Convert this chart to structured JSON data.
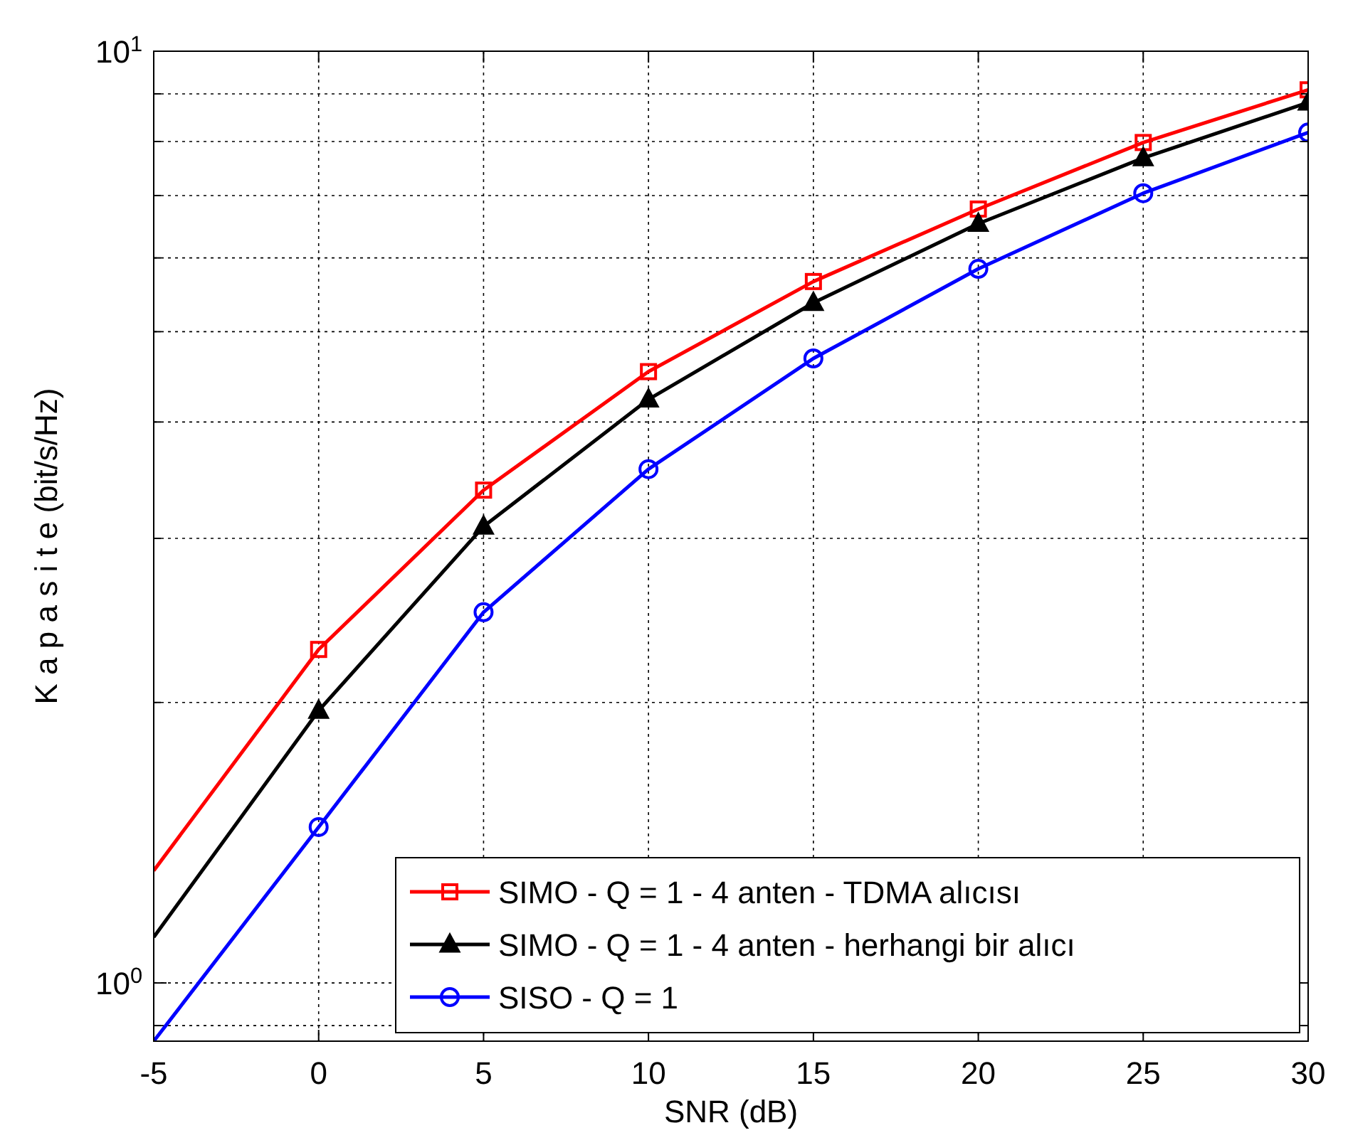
{
  "chart_data": {
    "type": "line",
    "xlabel": "SNR (dB)",
    "ylabel": "K a p a s i t e (bit/s/Hz)",
    "log": "y",
    "grid": true,
    "legend": "bottom right",
    "line_style": "solid",
    "x": [
      -5,
      0,
      5,
      10,
      15,
      20,
      25,
      30
    ],
    "xlim": [
      -5,
      30
    ],
    "xticks": [
      -5,
      0,
      5,
      10,
      15,
      20,
      25,
      30
    ],
    "ylim": [
      0.866,
      10
    ],
    "yticks": [
      {
        "value": 0.9,
        "label": null
      },
      {
        "value": 1,
        "label": "10$^{0}$"
      },
      {
        "value": 2,
        "label": null
      },
      {
        "value": 3,
        "label": null
      },
      {
        "value": 4,
        "label": null
      },
      {
        "value": 5,
        "label": null
      },
      {
        "value": 6,
        "label": null
      },
      {
        "value": 7,
        "label": null
      },
      {
        "value": 8,
        "label": null
      },
      {
        "value": 9,
        "label": null
      },
      {
        "value": 10,
        "label": "10$^{1}$"
      }
    ],
    "series": [
      {
        "name": "SIMO - Q = 1 - 4 anten - TDMA alıcısı",
        "color": "#ff0000",
        "marker": "square",
        "values": [
          1.32,
          2.28,
          3.38,
          4.53,
          5.66,
          6.77,
          7.98,
          9.09
        ]
      },
      {
        "name": "SIMO - Q = 1 - 4 anten - herhangi bir alıcı",
        "color": "#000000",
        "marker": "triangle",
        "values": [
          1.12,
          1.96,
          3.09,
          4.23,
          5.37,
          6.53,
          7.68,
          8.81
        ]
      },
      {
        "name": "SISO - Q = 1",
        "color": "#0000ff",
        "marker": "circle",
        "values": [
          0.866,
          1.47,
          2.5,
          3.56,
          4.68,
          5.84,
          7.04,
          8.18
        ]
      }
    ]
  }
}
